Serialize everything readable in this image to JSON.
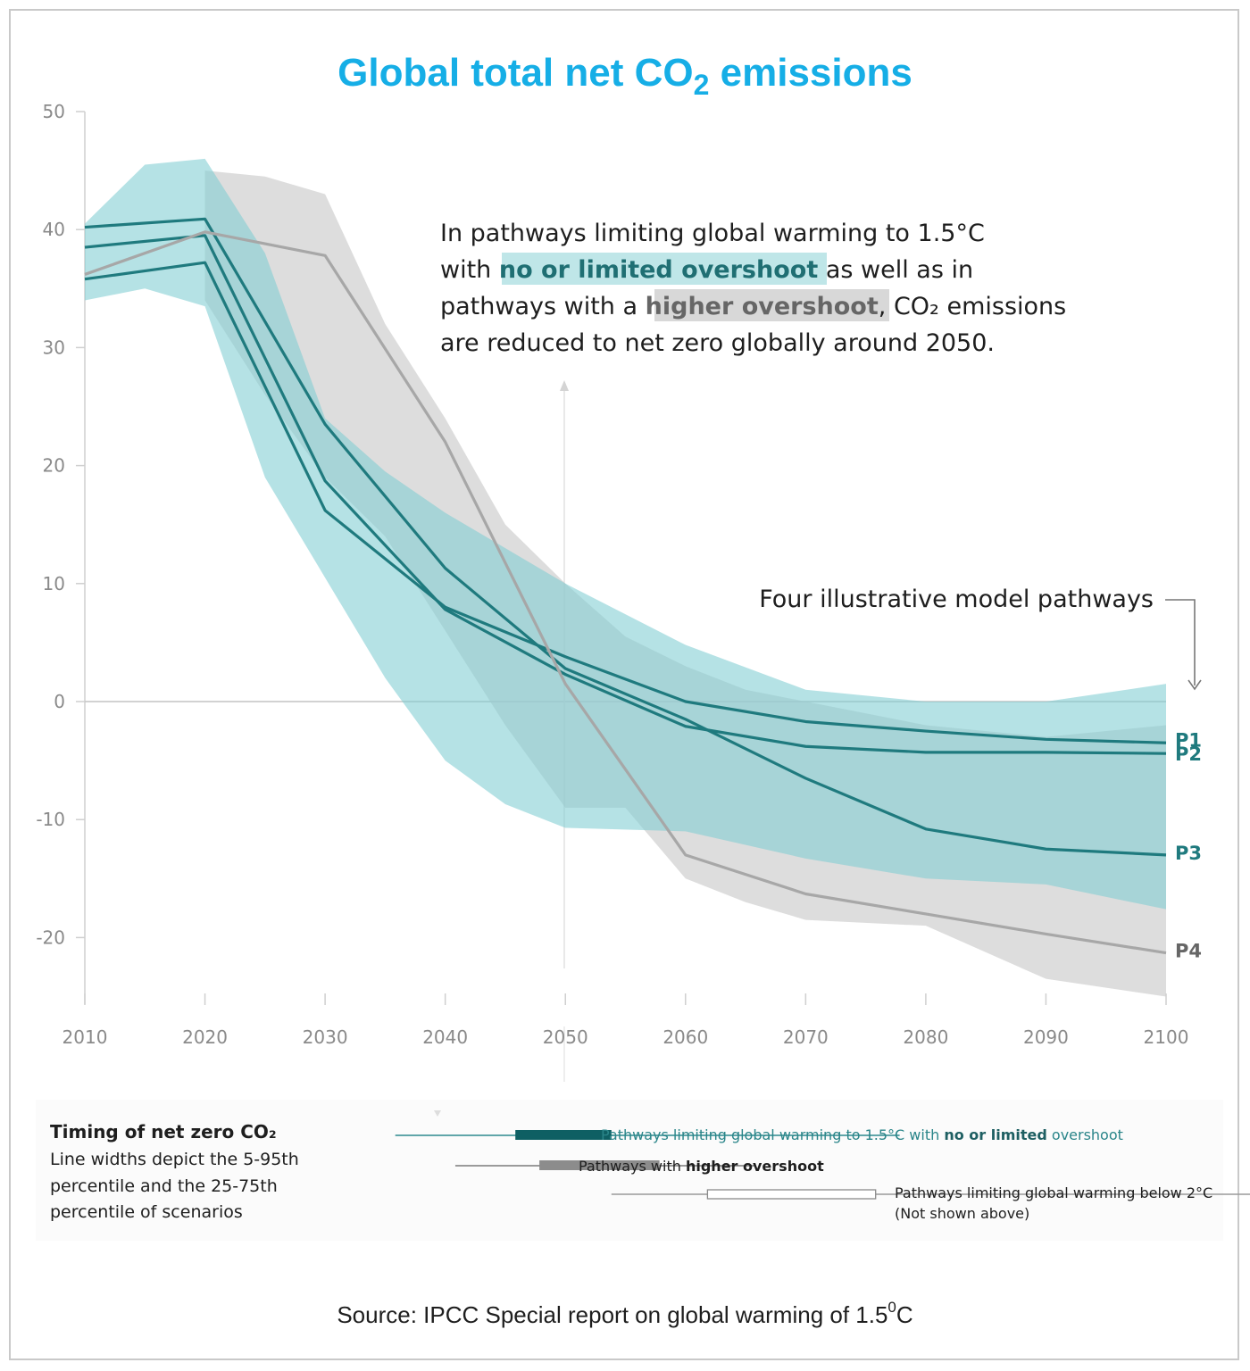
{
  "title": {
    "main": "Global total net CO",
    "sub": "2",
    "tail": " emissions"
  },
  "annotation": {
    "line1": "In pathways limiting global warming to 1.5°C",
    "line2_pre": "with ",
    "line2_highlight": "no or limited overshoot",
    "line2_post": " as well as in",
    "line3_pre": "pathways with a ",
    "line3_highlight": "higher overshoot",
    "line3_post": ", CO₂ emissions",
    "line4": "are reduced to net zero globally around 2050.",
    "pathways_label": "Four illustrative model pathways"
  },
  "legend": {
    "title": "Timing of net zero CO₂",
    "desc1": "Line widths depict the 5-95th",
    "desc2": "percentile and the 25-75th",
    "desc3": "percentile of scenarios",
    "row1_pre": "Pathways limiting global warming to 1.5°C with ",
    "row1_bold": "no or limited",
    "row1_post": " overshoot",
    "row2_pre": "Pathways with ",
    "row2_bold": "higher overshoot",
    "row3_line1": "Pathways limiting global warming below 2°C",
    "row3_line2": "(Not shown above)",
    "ranges": {
      "no_overshoot": {
        "p5": 2036,
        "p25": 2046,
        "p75": 2054,
        "p95": 2078
      },
      "higher_overshoot": {
        "p5": 2041,
        "p25": 2048,
        "p75": 2058,
        "p95": 2066
      },
      "below_2c": {
        "p5": 2054,
        "p25": 2062,
        "p75": 2076,
        "p95": 2114
      }
    }
  },
  "source": {
    "text": "Source: IPCC Special report on global warming of 1.5",
    "sup": "0",
    "tail": "C"
  },
  "colors": {
    "teal": "#1f7a7e",
    "teal_band": "#7fcdd3",
    "gray_band": "#c8c8c8",
    "gray_line": "#a7a7a7",
    "dark_teal": "#0e5f63",
    "title_blue": "#16aee6"
  },
  "chart_data": {
    "type": "line",
    "title": "Global total net CO2 emissions",
    "xlabel": "",
    "ylabel": "",
    "xlim": [
      2010,
      2100
    ],
    "ylim": [
      -25,
      50
    ],
    "x_ticks": [
      2010,
      2020,
      2030,
      2040,
      2050,
      2060,
      2070,
      2080,
      2090,
      2100
    ],
    "y_ticks": [
      50,
      40,
      30,
      20,
      10,
      0,
      -10,
      -20
    ],
    "grid": false,
    "series": [
      {
        "name": "P1",
        "x": [
          2010,
          2020,
          2030,
          2040,
          2050,
          2060,
          2070,
          2080,
          2090,
          2100
        ],
        "values": [
          35.8,
          37.2,
          16.2,
          8.0,
          3.8,
          0.0,
          -1.7,
          -2.5,
          -3.2,
          -3.5
        ]
      },
      {
        "name": "P2",
        "x": [
          2010,
          2020,
          2030,
          2040,
          2050,
          2060,
          2070,
          2080,
          2090,
          2100
        ],
        "values": [
          38.5,
          39.5,
          18.7,
          7.8,
          2.3,
          -2.1,
          -3.8,
          -4.3,
          -4.3,
          -4.4
        ]
      },
      {
        "name": "P3",
        "x": [
          2010,
          2020,
          2030,
          2040,
          2050,
          2060,
          2070,
          2080,
          2090,
          2100
        ],
        "values": [
          40.2,
          40.9,
          23.5,
          11.3,
          2.8,
          -1.5,
          -6.5,
          -10.8,
          -12.5,
          -13.0
        ]
      },
      {
        "name": "P4",
        "x": [
          2010,
          2020,
          2030,
          2040,
          2050,
          2060,
          2070,
          2080,
          2090,
          2100
        ],
        "values": [
          36.2,
          39.8,
          37.8,
          22.0,
          1.5,
          -13.0,
          -16.3,
          -18.0,
          -19.7,
          -21.3
        ]
      }
    ],
    "bands": {
      "no_or_limited_overshoot": {
        "x": [
          2010,
          2015,
          2020,
          2025,
          2030,
          2035,
          2040,
          2045,
          2050,
          2060,
          2070,
          2080,
          2090,
          2100
        ],
        "upper": [
          40.5,
          45.5,
          46.0,
          38.0,
          24.0,
          19.5,
          16.0,
          13.0,
          10.0,
          4.8,
          1.0,
          0.0,
          0.0,
          1.5
        ],
        "lower": [
          34.0,
          35.0,
          33.5,
          19.0,
          10.5,
          2.0,
          -5.0,
          -8.7,
          -10.7,
          -11.0,
          -13.3,
          -15.0,
          -15.5,
          -17.6
        ]
      },
      "higher_overshoot": {
        "x": [
          2020,
          2025,
          2030,
          2035,
          2040,
          2045,
          2050,
          2055,
          2060,
          2065,
          2070,
          2080,
          2090,
          2100
        ],
        "upper": [
          45.0,
          44.5,
          43.0,
          32.0,
          24.0,
          15.0,
          10.0,
          5.5,
          3.0,
          1.0,
          0.0,
          -2.0,
          -3.0,
          -2.0
        ],
        "lower": [
          34.0,
          26.0,
          19.0,
          14.0,
          6.0,
          -2.0,
          -9.0,
          -9.0,
          -15.0,
          -17.0,
          -18.5,
          -19.0,
          -23.5,
          -25.0
        ]
      }
    }
  }
}
